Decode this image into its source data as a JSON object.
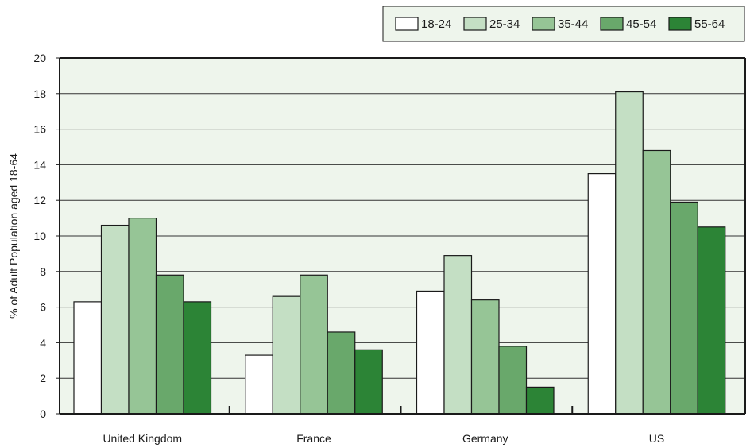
{
  "chart_data": {
    "type": "bar",
    "title": "",
    "xlabel": "",
    "ylabel": "% of  Adult Population aged 18-64",
    "ylim": [
      0,
      20
    ],
    "yticks": [
      0,
      2,
      4,
      6,
      8,
      10,
      12,
      14,
      16,
      18,
      20
    ],
    "grid": true,
    "legend_position": "top-right",
    "categories": [
      "United Kingdom",
      "France",
      "Germany",
      "US"
    ],
    "series": [
      {
        "name": "18-24",
        "color": "#ffffff",
        "values": [
          6.3,
          3.3,
          6.9,
          13.5
        ]
      },
      {
        "name": "25-34",
        "color": "#c4dfc4",
        "values": [
          10.6,
          6.6,
          8.9,
          18.1
        ]
      },
      {
        "name": "35-44",
        "color": "#96c596",
        "values": [
          11.0,
          7.8,
          6.4,
          14.8
        ]
      },
      {
        "name": "45-54",
        "color": "#69a86b",
        "values": [
          7.8,
          4.6,
          3.8,
          11.9
        ]
      },
      {
        "name": "55-64",
        "color": "#2c8436",
        "values": [
          6.3,
          3.6,
          1.5,
          10.5
        ]
      }
    ],
    "colors": {
      "plot_background": "#eef5ec",
      "legend_background": "#eef5ec",
      "axis": "#1a1a1a",
      "grid": "#333333"
    }
  }
}
